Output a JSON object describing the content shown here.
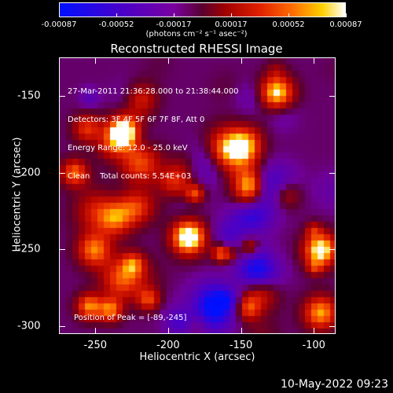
{
  "colorbar": {
    "ticks": [
      "-0.00087",
      "-0.00052",
      "-0.00017",
      "0.00017",
      "0.00052",
      "0.00087"
    ],
    "unit": "(photons cm⁻² s⁻¹ asec⁻²)"
  },
  "chart_data": {
    "type": "heatmap",
    "title": "Reconstructed RHESSI Image",
    "xlabel": "Heliocentric X (arcsec)",
    "ylabel": "Heliocentric Y (arcsec)",
    "xlim": [
      -275,
      -85
    ],
    "ylim": [
      -305,
      -125
    ],
    "x_ticks": [
      "-250",
      "-200",
      "-150",
      "-100"
    ],
    "y_ticks": [
      "-150",
      "-200",
      "-250",
      "-300"
    ],
    "annotations": [
      "27-Mar-2011 21:36:28.000 to 21:38:44.000",
      "Detectors: 3F 4F 5F 6F 7F 8F, Att 0",
      "Energy Range: 12.0 - 25.0 keV",
      "Clean    Total counts: 5.54E+03"
    ],
    "peak_label": "Position of Peak = [-89,-245]",
    "peak": [
      -89,
      -245
    ],
    "colors": {
      "bright": "#ffe060",
      "mid": "#e02000",
      "dark": "#5a0030",
      "neg": "#4a00c8"
    }
  },
  "footer": {
    "date": "10-May-2022 09:23"
  }
}
